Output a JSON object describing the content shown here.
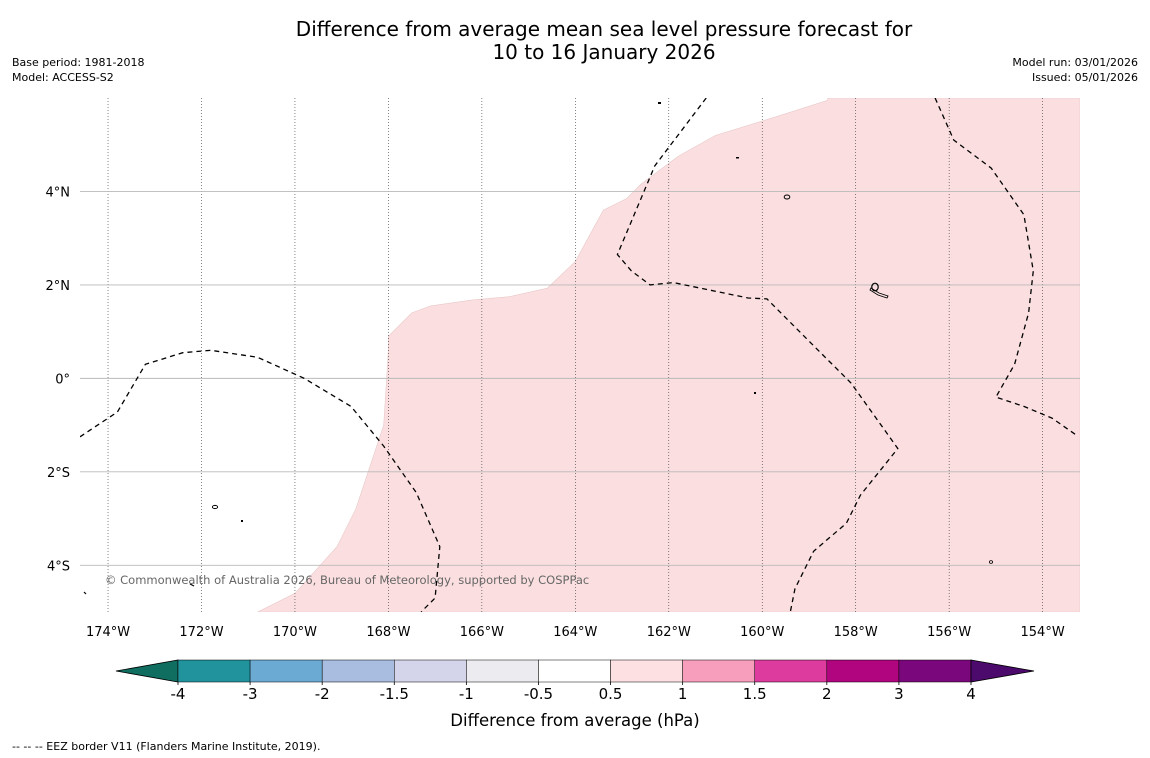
{
  "header": {
    "title_line1": "Difference from average mean sea level pressure forecast for",
    "title_line2": "10 to 16 January 2026",
    "base_period": "Base period: 1981-2018",
    "model": "Model: ACCESS-S2",
    "model_run": "Model run: 03/01/2026",
    "issued": "Issued: 05/01/2026"
  },
  "map": {
    "copyright": "© Commonwealth of Australia 2026, Bureau of Meteorology, supported by COSPPac",
    "shaded_category": "0.5 to 1",
    "land_features": [
      "atoll",
      "atoll",
      "atoll",
      "island",
      "island",
      "island",
      "island",
      "islet",
      "islet"
    ]
  },
  "chart_data": {
    "type": "heatmap",
    "title": "Difference from average mean sea level pressure forecast for 10 to 16 January 2026",
    "xlabel": "",
    "ylabel": "",
    "xlim": [
      -174.6,
      -153.2
    ],
    "ylim": [
      -5.0,
      6.0
    ],
    "x_ticks": [
      -174,
      -172,
      -170,
      -168,
      -166,
      -164,
      -162,
      -160,
      -158,
      -156,
      -154
    ],
    "x_tick_labels": [
      "174°W",
      "172°W",
      "170°W",
      "168°W",
      "166°W",
      "164°W",
      "162°W",
      "160°W",
      "158°W",
      "156°W",
      "154°W"
    ],
    "y_ticks": [
      4,
      2,
      0,
      -2,
      -4
    ],
    "y_tick_labels": [
      "4°N",
      "2°N",
      "0°",
      "2°S",
      "4°S"
    ],
    "grid": true,
    "shaded_region": {
      "value_range": [
        0.5,
        1
      ],
      "color": "#fbdfe0",
      "polygon": [
        [
          -170.8,
          -5.0
        ],
        [
          -170.0,
          -4.6
        ],
        [
          -169.1,
          -3.6
        ],
        [
          -168.7,
          -2.8
        ],
        [
          -168.1,
          -1.0
        ],
        [
          -168.0,
          0.6
        ],
        [
          -168.0,
          0.9
        ],
        [
          -167.5,
          1.4
        ],
        [
          -167.1,
          1.55
        ],
        [
          -166.2,
          1.68
        ],
        [
          -165.4,
          1.75
        ],
        [
          -164.6,
          1.93
        ],
        [
          -164.0,
          2.5
        ],
        [
          -163.7,
          3.05
        ],
        [
          -163.4,
          3.6
        ],
        [
          -162.9,
          3.85
        ],
        [
          -162.6,
          4.15
        ],
        [
          -161.8,
          4.75
        ],
        [
          -161.0,
          5.2
        ],
        [
          -159.7,
          5.6
        ],
        [
          -158.6,
          5.95
        ],
        [
          -158.6,
          6.0
        ],
        [
          -153.2,
          6.0
        ],
        [
          -153.2,
          -5.0
        ]
      ]
    },
    "eez_borders": [
      [
        [
          -174.6,
          -1.25
        ],
        [
          -173.8,
          -0.72
        ],
        [
          -173.2,
          0.3
        ],
        [
          -172.4,
          0.55
        ],
        [
          -171.8,
          0.6
        ],
        [
          -170.8,
          0.45
        ],
        [
          -169.8,
          0.0
        ],
        [
          -168.8,
          -0.6
        ],
        [
          -168.1,
          -1.45
        ],
        [
          -167.4,
          -2.45
        ],
        [
          -166.9,
          -3.6
        ],
        [
          -167.0,
          -4.7
        ],
        [
          -167.3,
          -5.0
        ]
      ],
      [
        [
          -161.2,
          6.0
        ],
        [
          -162.3,
          4.55
        ],
        [
          -163.1,
          2.65
        ],
        [
          -162.8,
          2.3
        ],
        [
          -162.4,
          2.0
        ],
        [
          -161.9,
          2.05
        ],
        [
          -160.3,
          1.72
        ],
        [
          -159.9,
          1.7
        ],
        [
          -158.9,
          0.7
        ],
        [
          -158.1,
          -0.1
        ],
        [
          -157.1,
          -1.5
        ],
        [
          -157.9,
          -2.5
        ],
        [
          -158.2,
          -3.1
        ],
        [
          -158.9,
          -3.7
        ],
        [
          -159.3,
          -4.5
        ],
        [
          -159.4,
          -5.0
        ]
      ],
      [
        [
          -156.3,
          6.0
        ],
        [
          -155.9,
          5.1
        ],
        [
          -155.1,
          4.5
        ],
        [
          -154.4,
          3.5
        ],
        [
          -154.2,
          2.3
        ],
        [
          -154.3,
          1.4
        ],
        [
          -154.6,
          0.3
        ],
        [
          -155.0,
          -0.4
        ],
        [
          -154.4,
          -0.6
        ],
        [
          -153.8,
          -0.85
        ],
        [
          -153.3,
          -1.2
        ]
      ]
    ],
    "colorbar": {
      "label": "Difference from average (hPa)",
      "tick_labels": [
        "-4",
        "-3",
        "-2",
        "-1.5",
        "-1",
        "-0.5",
        "0.5",
        "1",
        "1.5",
        "2",
        "3",
        "4"
      ],
      "colors": [
        "#0f6e60",
        "#21939c",
        "#6aaad3",
        "#a9bde0",
        "#d4d4ea",
        "#ececf0",
        "#ffffff",
        "#fde1e2",
        "#f79ebc",
        "#de3b9e",
        "#b1047f",
        "#7a087c",
        "#4c0a6c"
      ],
      "extend": "both"
    }
  },
  "legend": {
    "eez_label": "--  --  -- EEZ border V11 (Flanders Marine Institute, 2019)."
  }
}
